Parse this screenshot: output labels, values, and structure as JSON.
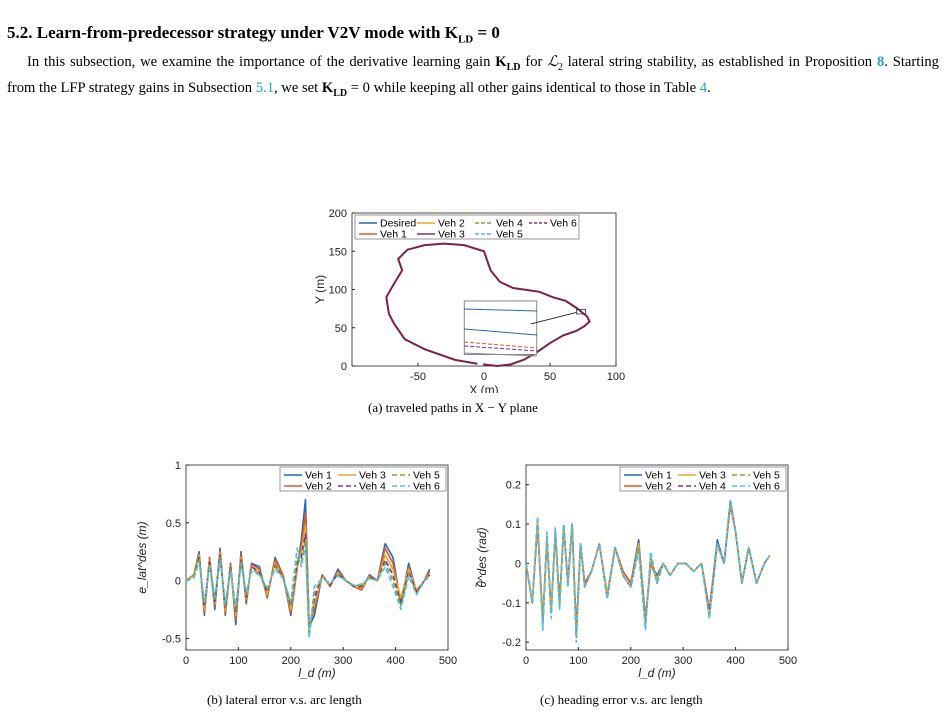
{
  "section": {
    "heading_prefix": "5.2.  Learn-from-predecessor strategy under V2V mode with ",
    "heading_symbol": "K",
    "heading_sub": "LD",
    "heading_suffix": " = 0",
    "p1": "In this subsection, we examine the importance of the derivative learning gain ",
    "p2": " for ",
    "p3": " lateral string stability, as established in Proposition ",
    "p4": ". Starting from the LFP strategy gains in Subsection ",
    "p5": ", we set ",
    "p6": " = 0 while keeping all other gains identical to those in Table ",
    "p7": ".",
    "gain_symbol": "K",
    "gain_sub": "LD",
    "l2_symbol": "ℒ",
    "l2_sub": "2",
    "ref_prop": "8",
    "ref_subsection": "5.1",
    "ref_table": "4"
  },
  "captions": {
    "a": "(a) traveled paths in X − Y plane",
    "b": "(b) lateral error v.s. arc length",
    "c": "(c) heading error v.s. arc length"
  },
  "colors": {
    "veh1": "#1f6bb5",
    "veh2": "#e0572a",
    "veh3": "#eaa62a",
    "veh4": "#7b2f8e",
    "veh5": "#77ac30",
    "veh6": "#4dbeee",
    "desired": "#1f6bb5",
    "path": "#7e1f4e"
  },
  "chart_data": [
    {
      "type": "line",
      "xlabel": "X (m)",
      "ylabel": "Y (m)",
      "xlim": [
        -100,
        100
      ],
      "ylim": [
        0,
        200
      ],
      "xticks": [
        "-50",
        "0",
        "50",
        "100"
      ],
      "yticks": [
        "0",
        "50",
        "100",
        "150",
        "200"
      ],
      "legend": [
        "Desired",
        "Veh 2",
        "Veh 4",
        "Veh 6",
        "Veh 1",
        "Veh 3",
        "Veh 5"
      ],
      "legend_placement": "top-right",
      "inset": "zoom near (75, 70)",
      "path": {
        "x": [
          -5,
          -22,
          -45,
          -60,
          -68,
          -72,
          -74,
          -68,
          -62,
          -65,
          -58,
          -45,
          -30,
          -15,
          0,
          5,
          12,
          22,
          30,
          42,
          52,
          62,
          70,
          78,
          80,
          76,
          70,
          60,
          50,
          40,
          30,
          20,
          10,
          0
        ],
        "y": [
          3,
          8,
          22,
          35,
          55,
          68,
          90,
          108,
          125,
          140,
          152,
          158,
          160,
          158,
          150,
          125,
          110,
          102,
          100,
          97,
          90,
          85,
          76,
          65,
          58,
          52,
          46,
          40,
          30,
          18,
          8,
          2,
          0,
          2
        ]
      }
    },
    {
      "type": "line",
      "xlabel": "l_d (m)",
      "ylabel": "e_lat^des (m)",
      "xlim": [
        0,
        500
      ],
      "ylim": [
        -0.6,
        1.0
      ],
      "xticks": [
        "0",
        "100",
        "200",
        "300",
        "400",
        "500"
      ],
      "yticks": [
        "-0.5",
        "0",
        "0.5",
        "1"
      ],
      "legend": [
        "Veh 1",
        "Veh 3",
        "Veh 5",
        "Veh 2",
        "Veh 4",
        "Veh 6"
      ],
      "legend_placement": "top-right",
      "x": [
        0,
        15,
        25,
        35,
        45,
        55,
        65,
        75,
        85,
        95,
        105,
        115,
        125,
        140,
        155,
        170,
        185,
        200,
        212,
        220,
        228,
        235,
        245,
        260,
        275,
        290,
        305,
        320,
        335,
        350,
        365,
        380,
        395,
        410,
        425,
        440,
        455,
        465
      ],
      "series": [
        {
          "name": "Veh 1",
          "values": [
            0,
            0.05,
            0.25,
            -0.3,
            0.2,
            -0.25,
            0.28,
            -0.3,
            0.15,
            -0.38,
            0.25,
            -0.2,
            0.15,
            0.12,
            -0.15,
            0.2,
            0.05,
            -0.3,
            0.1,
            0.35,
            0.7,
            -0.4,
            -0.3,
            0.05,
            -0.05,
            0.1,
            0.0,
            -0.05,
            -0.08,
            0.05,
            0.0,
            0.32,
            0.2,
            -0.2,
            0.15,
            -0.1,
            0.0,
            0.1
          ]
        },
        {
          "name": "Veh 2",
          "values": [
            0,
            0.05,
            0.23,
            -0.28,
            0.2,
            -0.22,
            0.26,
            -0.28,
            0.14,
            -0.34,
            0.23,
            -0.18,
            0.14,
            0.1,
            -0.14,
            0.18,
            0.05,
            -0.28,
            0.1,
            0.3,
            0.58,
            -0.38,
            -0.25,
            0.05,
            -0.05,
            0.08,
            0.0,
            -0.05,
            -0.08,
            0.04,
            0.0,
            0.28,
            0.15,
            -0.18,
            0.12,
            -0.1,
            0.0,
            0.08
          ]
        },
        {
          "name": "Veh 3",
          "values": [
            0,
            0.04,
            0.22,
            -0.25,
            0.18,
            -0.2,
            0.24,
            -0.26,
            0.12,
            -0.3,
            0.2,
            -0.16,
            0.12,
            0.08,
            -0.12,
            0.15,
            0.04,
            -0.25,
            0.12,
            0.25,
            0.48,
            -0.4,
            -0.2,
            0.04,
            -0.04,
            0.07,
            0.0,
            -0.05,
            -0.06,
            0.03,
            0.0,
            0.22,
            0.1,
            -0.15,
            0.1,
            -0.08,
            0.0,
            0.06
          ]
        },
        {
          "name": "Veh 4",
          "values": [
            0,
            0.03,
            0.2,
            -0.22,
            0.16,
            -0.18,
            0.22,
            -0.24,
            0.12,
            -0.28,
            0.18,
            -0.14,
            0.12,
            0.07,
            -0.1,
            0.13,
            0.04,
            -0.22,
            0.15,
            0.2,
            0.4,
            -0.45,
            -0.15,
            0.04,
            -0.04,
            0.06,
            0.0,
            -0.05,
            -0.05,
            0.03,
            0.0,
            0.18,
            0.05,
            -0.2,
            0.08,
            -0.1,
            0.0,
            0.05
          ]
        },
        {
          "name": "Veh 5",
          "values": [
            0,
            0.03,
            0.18,
            -0.2,
            0.14,
            -0.16,
            0.2,
            -0.22,
            0.1,
            -0.25,
            0.16,
            -0.12,
            0.1,
            0.06,
            -0.08,
            0.12,
            0.03,
            -0.2,
            0.2,
            0.15,
            0.35,
            -0.48,
            -0.1,
            0.03,
            -0.03,
            0.05,
            0.0,
            -0.04,
            -0.04,
            0.02,
            0.0,
            0.15,
            0.0,
            -0.22,
            0.06,
            -0.12,
            0.0,
            0.04
          ]
        },
        {
          "name": "Veh 6",
          "values": [
            0,
            0.02,
            0.16,
            -0.18,
            0.12,
            -0.14,
            0.18,
            -0.2,
            0.08,
            -0.22,
            0.14,
            -0.1,
            0.08,
            0.05,
            -0.06,
            0.1,
            0.02,
            -0.18,
            0.28,
            0.12,
            0.3,
            -0.5,
            -0.05,
            0.02,
            -0.02,
            0.04,
            0.0,
            -0.04,
            -0.03,
            0.02,
            0.0,
            0.12,
            -0.05,
            -0.25,
            0.04,
            -0.12,
            0.0,
            0.03
          ]
        }
      ]
    },
    {
      "type": "line",
      "xlabel": "l_d (m)",
      "ylabel": "θ̃^des (rad)",
      "xlim": [
        0,
        500
      ],
      "ylim": [
        -0.22,
        0.25
      ],
      "xticks": [
        "0",
        "100",
        "200",
        "300",
        "400",
        "500"
      ],
      "yticks": [
        "-0.2",
        "-0.1",
        "0",
        "0.1",
        "0.2"
      ],
      "legend": [
        "Veh 1",
        "Veh 3",
        "Veh 5",
        "Veh 2",
        "Veh 4",
        "Veh 6"
      ],
      "legend_placement": "top-right",
      "x": [
        0,
        12,
        22,
        32,
        40,
        48,
        56,
        64,
        72,
        80,
        88,
        96,
        104,
        112,
        125,
        140,
        155,
        170,
        185,
        200,
        215,
        228,
        238,
        250,
        262,
        275,
        290,
        305,
        320,
        335,
        350,
        365,
        378,
        390,
        400,
        412,
        425,
        440,
        455,
        465
      ],
      "series": [
        {
          "name": "Veh 1",
          "values": [
            0,
            -0.1,
            0.1,
            -0.15,
            0.06,
            -0.12,
            0.08,
            -0.1,
            0.09,
            -0.05,
            0.1,
            -0.18,
            0.05,
            -0.05,
            -0.02,
            0.05,
            -0.08,
            0.04,
            -0.02,
            -0.05,
            0.06,
            -0.14,
            0.0,
            -0.03,
            0.0,
            -0.03,
            0.0,
            0.0,
            -0.02,
            0.0,
            -0.12,
            0.06,
            0.0,
            0.15,
            0.08,
            -0.05,
            0.04,
            -0.05,
            0.0,
            0.02
          ]
        },
        {
          "name": "Veh 2",
          "values": [
            0,
            -0.1,
            0.1,
            -0.14,
            0.06,
            -0.12,
            0.08,
            -0.1,
            0.09,
            -0.05,
            0.1,
            -0.17,
            0.05,
            -0.05,
            -0.02,
            0.05,
            -0.08,
            0.04,
            -0.02,
            -0.05,
            0.05,
            -0.15,
            0.0,
            -0.04,
            0.0,
            -0.03,
            0.0,
            0.0,
            -0.02,
            0.0,
            -0.12,
            0.05,
            0.0,
            0.15,
            0.08,
            -0.05,
            0.04,
            -0.05,
            0.0,
            0.02
          ]
        },
        {
          "name": "Veh 3",
          "values": [
            0,
            -0.1,
            0.11,
            -0.15,
            0.07,
            -0.12,
            0.08,
            -0.11,
            0.09,
            -0.05,
            0.1,
            -0.18,
            0.05,
            -0.06,
            -0.02,
            0.05,
            -0.08,
            0.04,
            -0.03,
            -0.06,
            0.05,
            -0.15,
            0.01,
            -0.04,
            0.0,
            -0.03,
            0.0,
            0.0,
            -0.02,
            0.0,
            -0.13,
            0.05,
            0.0,
            0.16,
            0.08,
            -0.05,
            0.04,
            -0.05,
            0.0,
            0.02
          ]
        },
        {
          "name": "Veh 4",
          "values": [
            0,
            -0.1,
            0.11,
            -0.16,
            0.07,
            -0.13,
            0.08,
            -0.11,
            0.1,
            -0.05,
            0.1,
            -0.19,
            0.05,
            -0.06,
            -0.02,
            0.05,
            -0.09,
            0.04,
            -0.03,
            -0.06,
            0.04,
            -0.16,
            0.02,
            -0.05,
            0.0,
            -0.03,
            0.0,
            0.0,
            -0.02,
            0.0,
            -0.13,
            0.05,
            0.0,
            0.16,
            0.08,
            -0.05,
            0.04,
            -0.05,
            0.0,
            0.02
          ]
        },
        {
          "name": "Veh 5",
          "values": [
            0,
            -0.1,
            0.12,
            -0.16,
            0.07,
            -0.13,
            0.09,
            -0.11,
            0.1,
            -0.06,
            0.1,
            -0.19,
            0.05,
            -0.06,
            -0.02,
            0.05,
            -0.09,
            0.04,
            -0.03,
            -0.06,
            0.04,
            -0.16,
            0.02,
            -0.05,
            0.0,
            -0.03,
            0.0,
            0.0,
            -0.02,
            0.0,
            -0.14,
            0.05,
            0.0,
            0.16,
            0.08,
            -0.05,
            0.04,
            -0.05,
            0.0,
            0.02
          ]
        },
        {
          "name": "Veh 6",
          "values": [
            0,
            -0.1,
            0.12,
            -0.17,
            0.08,
            -0.14,
            0.09,
            -0.12,
            0.1,
            -0.06,
            0.1,
            -0.2,
            0.05,
            -0.06,
            -0.02,
            0.05,
            -0.09,
            0.04,
            -0.03,
            -0.06,
            0.03,
            -0.17,
            0.03,
            -0.05,
            0.0,
            -0.03,
            0.0,
            0.0,
            -0.02,
            0.0,
            -0.14,
            0.05,
            0.0,
            0.16,
            0.08,
            -0.05,
            0.04,
            -0.05,
            0.0,
            0.02
          ]
        }
      ]
    }
  ]
}
